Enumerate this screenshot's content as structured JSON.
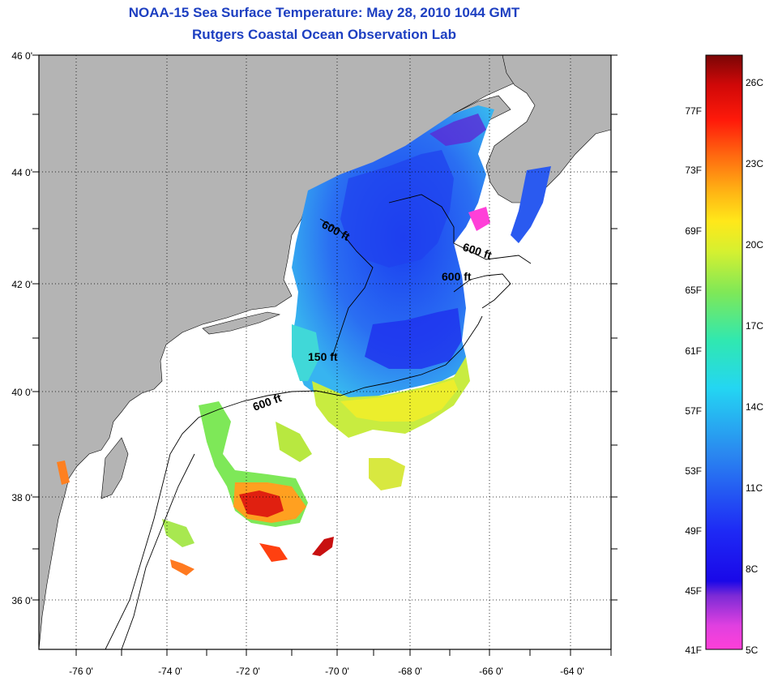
{
  "header": {
    "title": "NOAA-15 Sea Surface Temperature:  May 28, 2010 1044 GMT",
    "subtitle": "Rutgers Coastal Ocean Observation Lab"
  },
  "axes": {
    "lat_labels": [
      "46 0'",
      "44 0'",
      "42 0'",
      "40 0'",
      "38 0'",
      "36 0'"
    ],
    "lon_labels": [
      "-76 0'",
      "-74 0'",
      "-72 0'",
      "-70 0'",
      "-68 0'",
      "-66 0'",
      "-64 0'"
    ]
  },
  "contours": {
    "labels": [
      "600 ft",
      "600 ft",
      "600 ft",
      "150 ft",
      "600 ft"
    ]
  },
  "colorbar": {
    "fahrenheit": [
      "77F",
      "73F",
      "69F",
      "65F",
      "61F",
      "57F",
      "53F",
      "49F",
      "45F",
      "41F"
    ],
    "celsius": [
      "26C",
      "23C",
      "20C",
      "17C",
      "14C",
      "11C",
      "8C",
      "5C"
    ]
  },
  "colors": {
    "title": "#1d3fc1",
    "land": "#b4b4b4",
    "ocean": "#ffffff"
  }
}
